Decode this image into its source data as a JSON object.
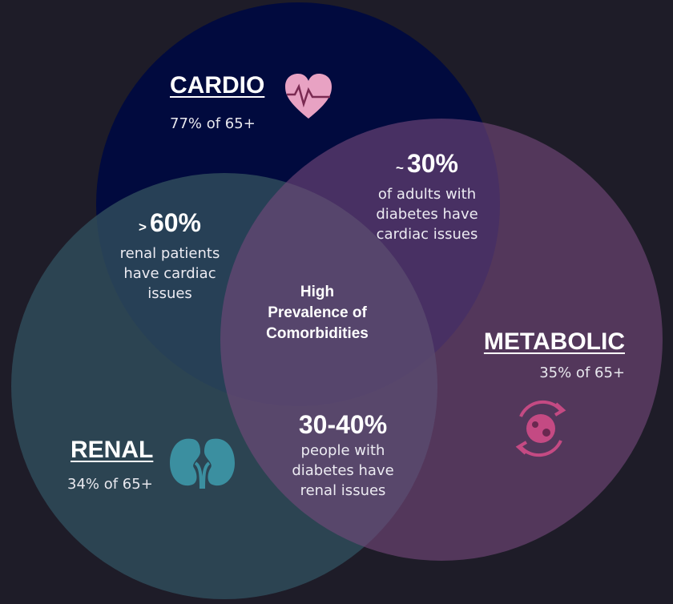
{
  "diagram": {
    "sets": [
      {
        "title": "CARDIO",
        "stat": "77% of 65+"
      },
      {
        "title": "METABOLIC",
        "stat": "35% of 65+"
      },
      {
        "title": "RENAL",
        "stat": "34% of 65+"
      }
    ],
    "overlaps": [
      {
        "prefix": "~",
        "value": "30%",
        "lines": [
          "of adults with",
          "diabetes have",
          "cardiac issues"
        ]
      },
      {
        "prefix": ">",
        "value": "60%",
        "lines": [
          "renal patients",
          "have cardiac",
          "issues"
        ]
      },
      {
        "value": "30-40%",
        "lines": [
          "people with",
          "diabetes have",
          "renal issues"
        ]
      }
    ],
    "center": {
      "lines": [
        "High",
        "Prevalence of",
        "Comorbidities"
      ]
    }
  }
}
